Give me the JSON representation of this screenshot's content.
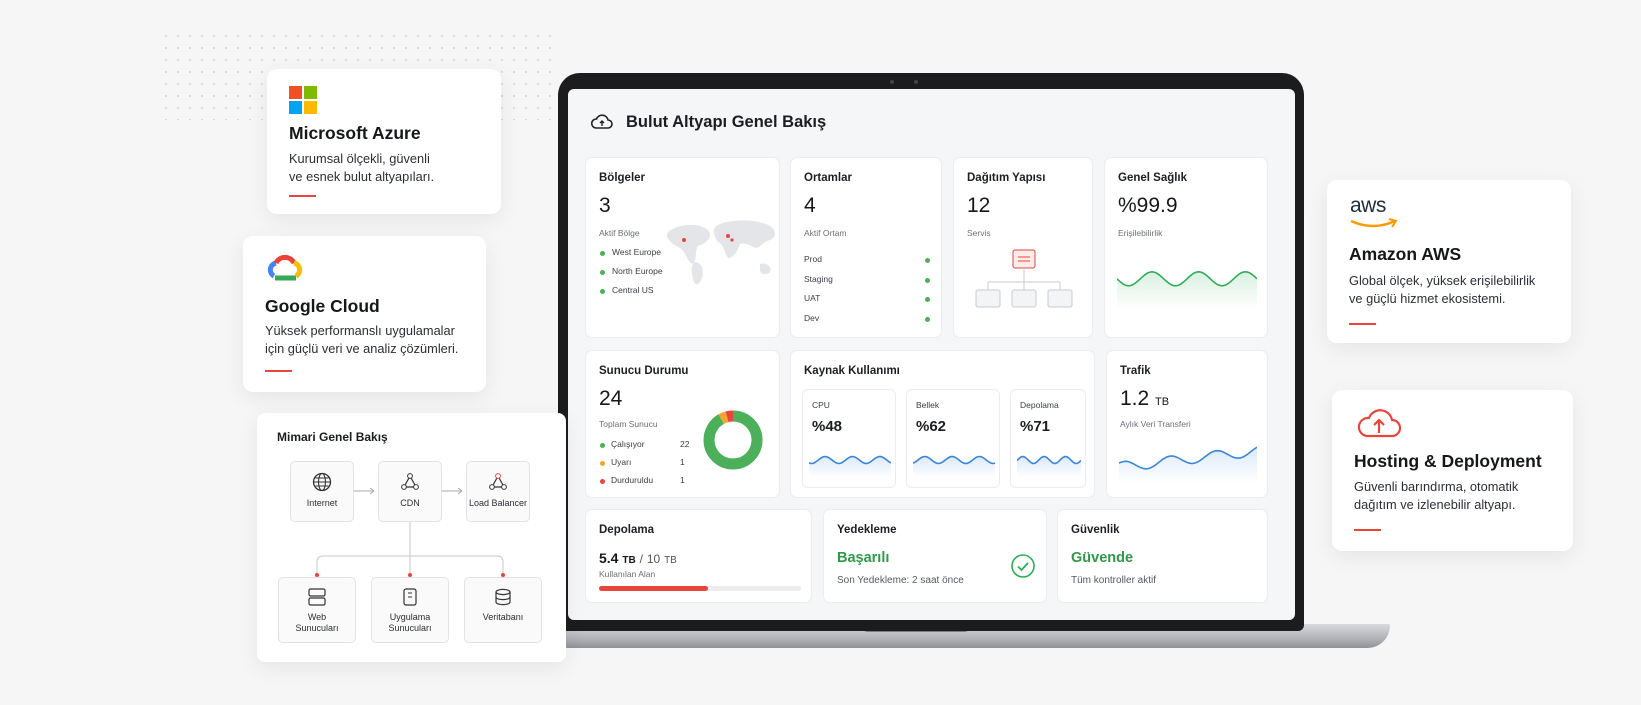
{
  "header": {
    "title": "Bulut Altyapı Genel Bakış"
  },
  "cards": {
    "regions": {
      "title": "Bölgeler",
      "value": 3,
      "subtitle": "Aktif Bölge",
      "items": [
        "West Europe",
        "North Europe",
        "Central US"
      ]
    },
    "environments": {
      "title": "Ortamlar",
      "value": 4,
      "subtitle": "Aktif Ortam",
      "items": [
        "Prod",
        "Staging",
        "UAT",
        "Dev"
      ]
    },
    "deployment": {
      "title": "Dağıtım Yapısı",
      "value": 12,
      "subtitle": "Servis"
    },
    "health": {
      "title": "Genel Sağlık",
      "value": "%99.9",
      "subtitle": "Erişilebilirlik"
    },
    "servers": {
      "title": "Sunucu Durumu",
      "value": 24,
      "subtitle": "Toplam Sunucu",
      "items": [
        {
          "name": "Çalışıyor",
          "count": 22,
          "color": "#4caf5a"
        },
        {
          "name": "Uyarı",
          "count": 1,
          "color": "#f2a630"
        },
        {
          "name": "Durduruldu",
          "count": 1,
          "color": "#e8453c"
        }
      ]
    },
    "resources": {
      "title": "Kaynak Kullanımı",
      "items": [
        {
          "name": "CPU",
          "value": "%48"
        },
        {
          "name": "Bellek",
          "value": "%62"
        },
        {
          "name": "Depolama",
          "value": "%71"
        }
      ]
    },
    "traffic": {
      "title": "Trafik",
      "value": 1.2,
      "unit": "TB",
      "subtitle": "Aylık Veri Transferi"
    },
    "storage": {
      "title": "Depolama",
      "used": 5.4,
      "unit": "TB",
      "separator": "/",
      "total": 10,
      "subtitle": "Kullanılan Alan",
      "color": "#e8453c"
    },
    "backup": {
      "title": "Yedekleme",
      "status": "Başarılı",
      "detail": "Son Yedekleme: 2 saat önce"
    },
    "security": {
      "title": "Güvenlik",
      "status": "Güvende",
      "detail": "Tüm kontroller aktif"
    }
  },
  "providers": [
    {
      "name": "Microsoft Azure",
      "description": [
        "Kurumsal ölçekli, güvenli",
        "ve esnek bulut altyapıları."
      ]
    },
    {
      "name": "Google Cloud",
      "description": [
        "Yüksek performanslı uygulamalar",
        "için güçlü veri ve analiz çözümleri."
      ]
    },
    {
      "name": "Amazon AWS",
      "logo_text": "aws",
      "description": [
        "Global ölçek, yüksek erişilebilirlik",
        "ve güçlü hizmet ekosistemi."
      ]
    },
    {
      "name": "Hosting & Deployment",
      "description": [
        "Güvenli barındırma, otomatik",
        "dağıtım ve izlenebilir altyapı."
      ]
    }
  ],
  "architecture": {
    "title": "Mimari Genel Bakış",
    "nodes": [
      "Internet",
      "CDN",
      "Load Balancer",
      "Web Sunucuları",
      "Uygulama Sunucuları",
      "Veritabanı"
    ]
  }
}
